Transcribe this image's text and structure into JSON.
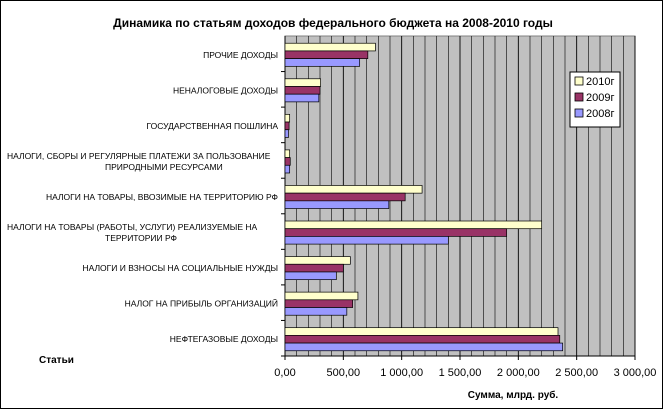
{
  "chart_data": {
    "type": "bar",
    "orientation": "horizontal",
    "title": "Динамика по статьям доходов федерального бюджета на 2008-2010 годы",
    "xlabel": "Сумма, млрд. руб.",
    "ylabel": "Статьи",
    "xlim": [
      0,
      3000
    ],
    "xticks": [
      "0,00",
      "500,00",
      "1 000,00",
      "1 500,00",
      "2 000,00",
      "2 500,00",
      "3 000,00"
    ],
    "grid": true,
    "legend_position": "right",
    "categories": [
      [
        "НЕФТЕГАЗОВЫЕ ДОХОДЫ"
      ],
      [
        "НАЛОГ НА ПРИБЫЛЬ ОРГАНИЗАЦИЙ"
      ],
      [
        "НАЛОГИ И ВЗНОСЫ НА СОЦИАЛЬНЫЕ НУЖДЫ"
      ],
      [
        "НАЛОГИ НА ТОВАРЫ (РАБОТЫ, УСЛУГИ) РЕАЛИЗУЕМЫЕ НА",
        "ТЕРРИТОРИИ РФ"
      ],
      [
        "НАЛОГИ НА ТОВАРЫ, ВВОЗИМЫЕ НА ТЕРРИТОРИЮ РФ"
      ],
      [
        "НАЛОГИ, СБОРЫ И РЕГУЛЯРНЫЕ ПЛАТЕЖИ ЗА ПОЛЬЗОВАНИЕ",
        "ПРИРОДНЫМИ РЕСУРСАМИ"
      ],
      [
        "ГОСУДАРСТВЕННАЯ ПОШЛИНА"
      ],
      [
        "НЕНАЛОГОВЫЕ ДОХОДЫ"
      ],
      [
        "ПРОЧИЕ ДОХОДЫ"
      ]
    ],
    "series": [
      {
        "name": "2010г",
        "color": "#FFFFCC",
        "values": [
          2340,
          625,
          560,
          2200,
          1175,
          40,
          40,
          305,
          775
        ]
      },
      {
        "name": "2009г",
        "color": "#993366",
        "values": [
          2355,
          580,
          500,
          1900,
          1030,
          45,
          35,
          300,
          710
        ]
      },
      {
        "name": "2008г",
        "color": "#9999FF",
        "values": [
          2380,
          530,
          440,
          1400,
          890,
          40,
          30,
          290,
          640
        ]
      }
    ],
    "plot_background": "#C0C0C0"
  }
}
